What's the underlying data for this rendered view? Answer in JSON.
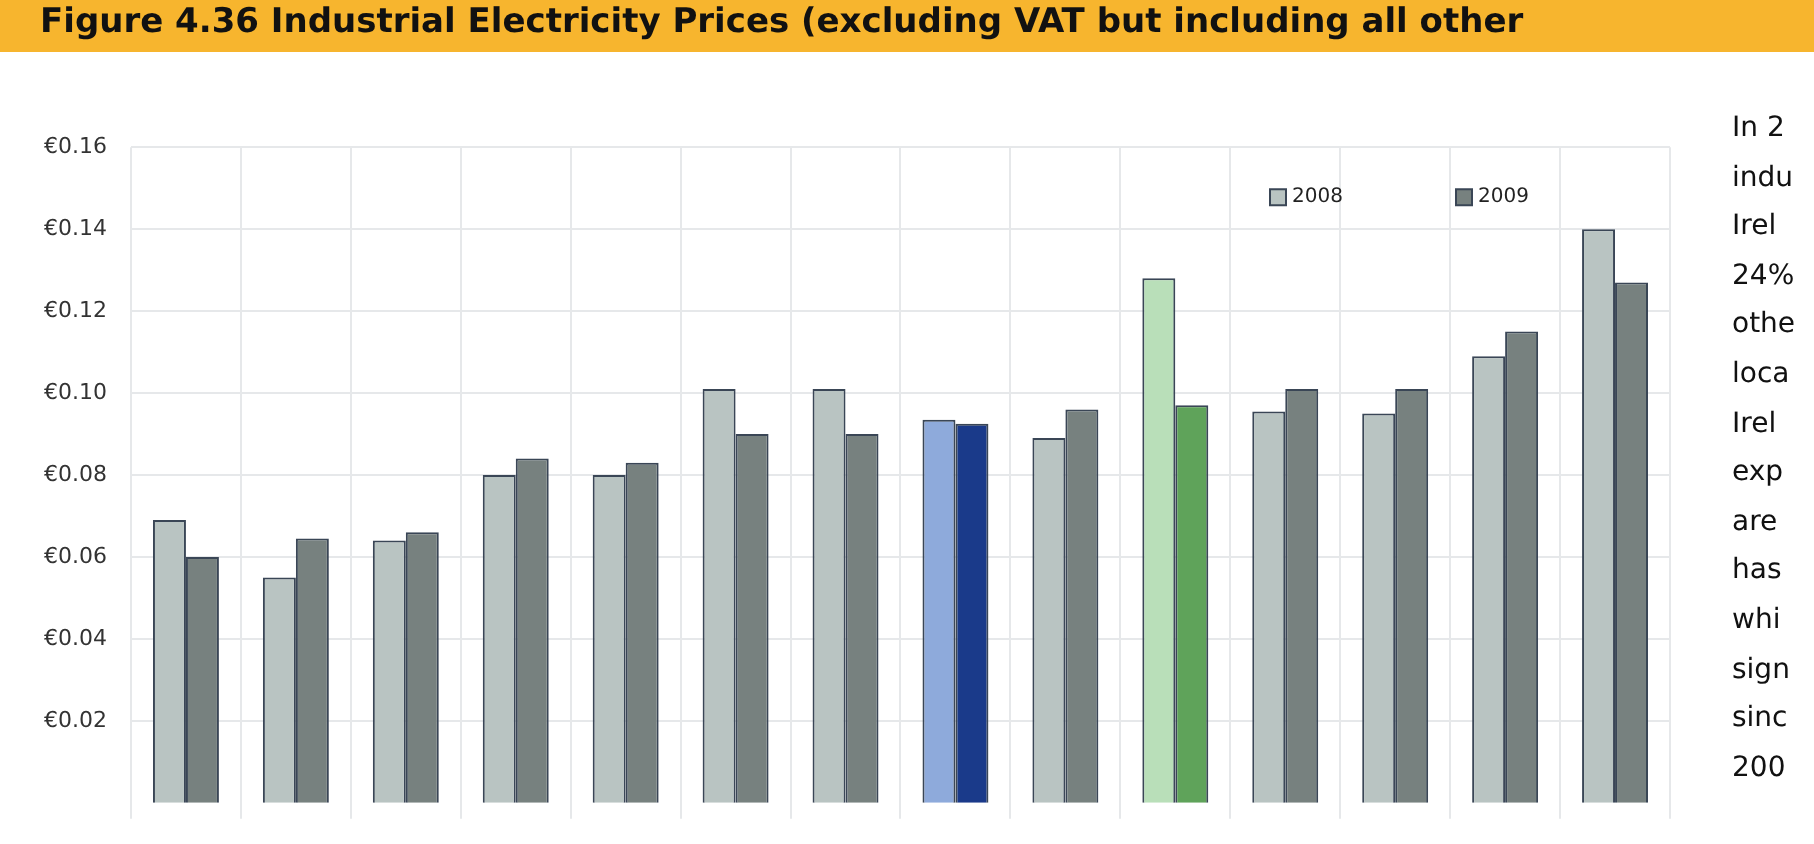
{
  "chart_data": {
    "type": "bar",
    "title": "Figure 4.36 Industrial Electricity Prices (excluding VAT but including all other",
    "categories": [
      null,
      null,
      null,
      null,
      null,
      null,
      null,
      null,
      null,
      null,
      null,
      null,
      null,
      null
    ],
    "series": [
      {
        "name": "2008",
        "color": "#b9c4c2",
        "colors": [
          "#b9c4c2",
          "#b9c4c2",
          "#b9c4c2",
          "#b9c4c2",
          "#b9c4c2",
          "#b9c4c2",
          "#b9c4c2",
          "#8eaadb",
          "#b9c4c2",
          "#b9dfb9",
          "#b9c4c2",
          "#b9c4c2",
          "#b9c4c2",
          "#b9c4c2"
        ],
        "values": [
          0.069,
          0.055,
          0.064,
          0.08,
          0.08,
          0.101,
          0.101,
          0.0935,
          0.089,
          0.128,
          0.0955,
          0.095,
          0.109,
          0.14
        ]
      },
      {
        "name": "2009",
        "color": "#77817f",
        "colors": [
          "#77817f",
          "#77817f",
          "#77817f",
          "#77817f",
          "#77817f",
          "#77817f",
          "#77817f",
          "#1a3a8a",
          "#77817f",
          "#5fa35a",
          "#77817f",
          "#77817f",
          "#77817f",
          "#77817f"
        ],
        "values": [
          0.06,
          0.0645,
          0.066,
          0.084,
          0.083,
          0.09,
          0.09,
          0.0925,
          0.096,
          0.097,
          0.101,
          0.101,
          0.115,
          0.127
        ]
      }
    ],
    "ylim": [
      0,
      0.16
    ],
    "yticks": [
      {
        "value": 0.02,
        "label": "€0.02"
      },
      {
        "value": 0.04,
        "label": "€0.04"
      },
      {
        "value": 0.06,
        "label": "€0.06"
      },
      {
        "value": 0.08,
        "label": "€0.08"
      },
      {
        "value": 0.1,
        "label": "€0.10"
      },
      {
        "value": 0.12,
        "label": "€0.12"
      },
      {
        "value": 0.14,
        "label": "€0.14"
      },
      {
        "value": 0.16,
        "label": "€0.16"
      }
    ],
    "grid": true,
    "legend": "top right",
    "annotations": [
      "In 2",
      "indu",
      "Irel",
      "24%",
      "othe",
      "loca",
      "Irel",
      "exp",
      "are",
      "has",
      "whi",
      "sign",
      "sinc",
      "200"
    ]
  }
}
